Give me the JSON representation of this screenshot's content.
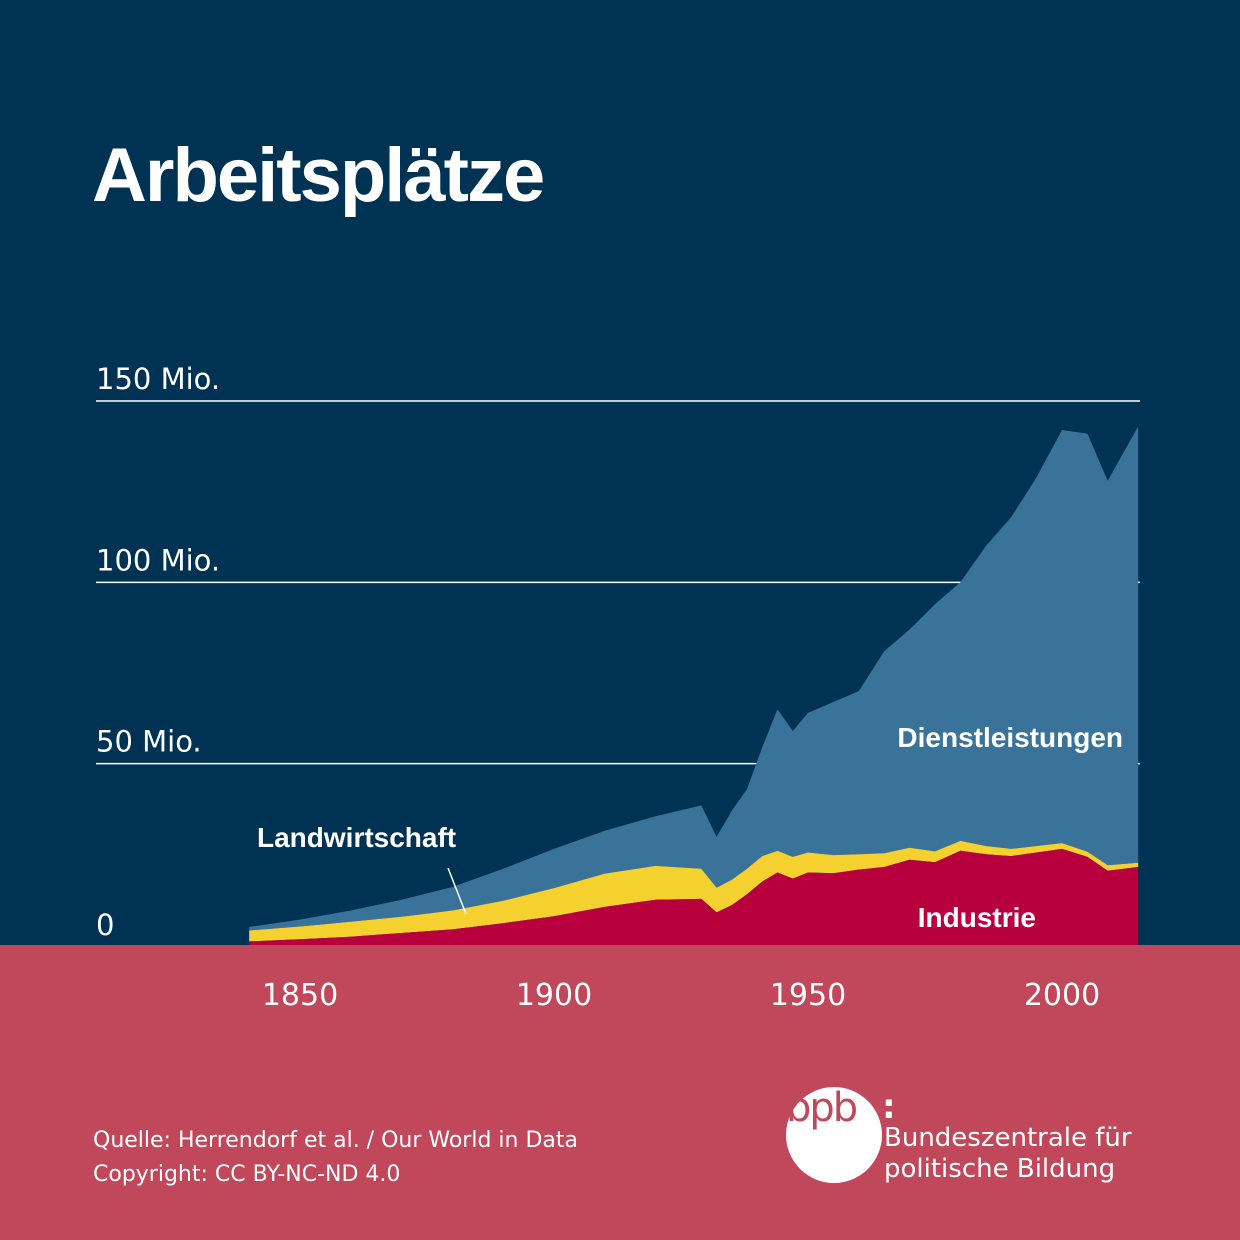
{
  "title": "Arbeitsplätze",
  "colors": {
    "background_top": "#003253",
    "background_bottom": "#c1485a",
    "dienstleistungen": "#3a7399",
    "landwirtschaft": "#f5d12f",
    "industrie": "#b8003f",
    "gridline": "#ffffff"
  },
  "chart_data": {
    "type": "area",
    "stacked": true,
    "title": "Arbeitsplätze",
    "xlabel": "",
    "ylabel": "",
    "xlim": [
      1840,
      2015
    ],
    "ylim": [
      0,
      150
    ],
    "grid": true,
    "y_ticks": [
      {
        "value": 0,
        "label": "0"
      },
      {
        "value": 50,
        "label": "50 Mio."
      },
      {
        "value": 100,
        "label": "100 Mio."
      },
      {
        "value": 150,
        "label": "150 Mio."
      }
    ],
    "x_ticks": [
      {
        "value": 1850,
        "label": "1850"
      },
      {
        "value": 1900,
        "label": "1900"
      },
      {
        "value": 1950,
        "label": "1950"
      },
      {
        "value": 2000,
        "label": "2000"
      }
    ],
    "x": [
      1840,
      1850,
      1860,
      1870,
      1880,
      1890,
      1900,
      1910,
      1920,
      1929,
      1932,
      1935,
      1938,
      1941,
      1944,
      1947,
      1950,
      1955,
      1960,
      1965,
      1970,
      1975,
      1980,
      1985,
      1990,
      1995,
      2000,
      2005,
      2009,
      2015
    ],
    "series": [
      {
        "name": "Industrie",
        "values": [
          1.0,
          1.6,
          2.3,
          3.3,
          4.3,
          6.0,
          7.9,
          10.5,
          12.5,
          12.7,
          9.0,
          11.0,
          14.0,
          17.5,
          20.0,
          18.3,
          20.0,
          19.8,
          20.8,
          21.5,
          23.5,
          22.8,
          26.0,
          25.0,
          24.5,
          25.5,
          26.5,
          24.3,
          20.5,
          21.5
        ]
      },
      {
        "name": "Landwirtschaft",
        "values": [
          3.0,
          3.5,
          4.1,
          4.5,
          5.2,
          6.2,
          7.8,
          9.2,
          9.3,
          8.3,
          6.8,
          7.0,
          7.0,
          7.0,
          6.0,
          6.0,
          5.5,
          5.0,
          4.2,
          3.8,
          3.3,
          3.0,
          2.7,
          2.3,
          2.0,
          1.8,
          1.6,
          1.4,
          1.5,
          1.2
        ]
      },
      {
        "name": "Dienstleistungen",
        "values": [
          1.0,
          1.9,
          3.1,
          4.7,
          6.5,
          8.8,
          10.8,
          11.8,
          13.7,
          17.5,
          14.0,
          19.0,
          22.0,
          30.0,
          39.0,
          34.7,
          38.5,
          42.2,
          45.0,
          55.7,
          60.2,
          68.2,
          71.3,
          82.7,
          91.5,
          101.7,
          113.9,
          115.3,
          106.0,
          120.3
        ]
      }
    ],
    "series_labels": [
      "Dienstleistungen",
      "Landwirtschaft",
      "Industrie"
    ]
  },
  "footer": {
    "source_line": "Quelle: Herrendorf et al. / Our World in Data",
    "copyright_line": "Copyright: CC BY-NC-ND 4.0"
  },
  "logo": {
    "mark": "bpb",
    "colon": ":",
    "line1": "Bundeszentrale für",
    "line2": "politische Bildung"
  }
}
